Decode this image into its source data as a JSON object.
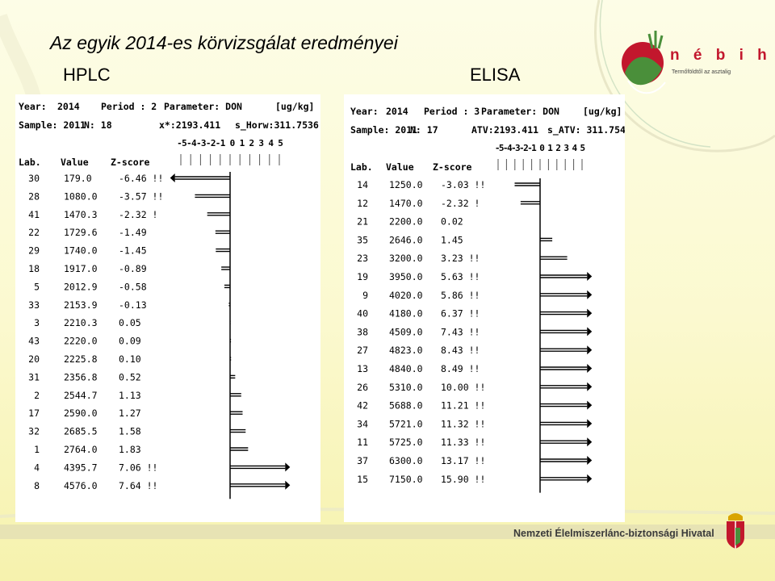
{
  "slide": {
    "title": "Az egyik 2014-es körvizsgálat eredményei",
    "left_heading": "HPLC",
    "right_heading": "ELISA",
    "footer": "Nemzeti Élelmiszerlánc-biztonsági Hivatal",
    "logo_word": "n é b i h",
    "logo_tagline": "Termőföldtől az asztalig",
    "colors": {
      "logo_red": "#c2172d",
      "logo_green": "#4a8f3a",
      "arrow": "#000000"
    }
  },
  "chart_data": [
    {
      "type": "bar",
      "header": {
        "year_label": "Year:",
        "year": "2014",
        "period_label": "Period : 2",
        "parameter_label": "Parameter: DON",
        "unit": "[ug/kg]",
        "sample_label": "Sample: 2011",
        "n_label": "N: 18",
        "assigned": "x*:2193.411",
        "sd": "s_Horw:311.7536"
      },
      "scale_labels": "-5-4-3-2-1 0 1 2 3 4 5",
      "columns": [
        "Lab.",
        "Value",
        "Z-score"
      ],
      "xlim": [
        -5,
        5
      ],
      "rows": [
        {
          "lab": "30",
          "value": "179.0",
          "z": "-6.46 !!",
          "zv": -6.46
        },
        {
          "lab": "28",
          "value": "1080.0",
          "z": "-3.57 !!",
          "zv": -3.57
        },
        {
          "lab": "41",
          "value": "1470.3",
          "z": "-2.32 !",
          "zv": -2.32
        },
        {
          "lab": "22",
          "value": "1729.6",
          "z": "-1.49",
          "zv": -1.49
        },
        {
          "lab": "29",
          "value": "1740.0",
          "z": "-1.45",
          "zv": -1.45
        },
        {
          "lab": "18",
          "value": "1917.0",
          "z": "-0.89",
          "zv": -0.89
        },
        {
          "lab": "5",
          "value": "2012.9",
          "z": "-0.58",
          "zv": -0.58
        },
        {
          "lab": "33",
          "value": "2153.9",
          "z": "-0.13",
          "zv": -0.13
        },
        {
          "lab": "3",
          "value": "2210.3",
          "z": "0.05",
          "zv": 0.05
        },
        {
          "lab": "43",
          "value": "2220.0",
          "z": "0.09",
          "zv": 0.09
        },
        {
          "lab": "20",
          "value": "2225.8",
          "z": "0.10",
          "zv": 0.1
        },
        {
          "lab": "31",
          "value": "2356.8",
          "z": "0.52",
          "zv": 0.52
        },
        {
          "lab": "2",
          "value": "2544.7",
          "z": "1.13",
          "zv": 1.13
        },
        {
          "lab": "17",
          "value": "2590.0",
          "z": "1.27",
          "zv": 1.27
        },
        {
          "lab": "32",
          "value": "2685.5",
          "z": "1.58",
          "zv": 1.58
        },
        {
          "lab": "1",
          "value": "2764.0",
          "z": "1.83",
          "zv": 1.83
        },
        {
          "lab": "4",
          "value": "4395.7",
          "z": "7.06 !!",
          "zv": 7.06
        },
        {
          "lab": "8",
          "value": "4576.0",
          "z": "7.64 !!",
          "zv": 7.64
        }
      ]
    },
    {
      "type": "bar",
      "header": {
        "year_label": "Year:",
        "year": "2014",
        "period_label": "Period : 3",
        "parameter_label": "Parameter: DON",
        "unit": "[ug/kg]",
        "sample_label": "Sample: 2011",
        "n_label": "N: 17",
        "assigned": "ATV:2193.411",
        "sd": "s_ATV: 311.754"
      },
      "scale_labels": "-5-4-3-2-1 0 1 2 3 4 5",
      "columns": [
        "Lab.",
        "Value",
        "Z-score"
      ],
      "xlim": [
        -5,
        5
      ],
      "rows": [
        {
          "lab": "14",
          "value": "1250.0",
          "z": "-3.03 !!",
          "zv": -3.03
        },
        {
          "lab": "12",
          "value": "1470.0",
          "z": "-2.32 !",
          "zv": -2.32
        },
        {
          "lab": "21",
          "value": "2200.0",
          "z": "0.02",
          "zv": 0.02
        },
        {
          "lab": "35",
          "value": "2646.0",
          "z": "1.45",
          "zv": 1.45
        },
        {
          "lab": "23",
          "value": "3200.0",
          "z": "3.23 !!",
          "zv": 3.23
        },
        {
          "lab": "19",
          "value": "3950.0",
          "z": "5.63 !!",
          "zv": 5.63
        },
        {
          "lab": "9",
          "value": "4020.0",
          "z": "5.86 !!",
          "zv": 5.86
        },
        {
          "lab": "40",
          "value": "4180.0",
          "z": "6.37 !!",
          "zv": 6.37
        },
        {
          "lab": "38",
          "value": "4509.0",
          "z": "7.43 !!",
          "zv": 7.43
        },
        {
          "lab": "27",
          "value": "4823.0",
          "z": "8.43 !!",
          "zv": 8.43
        },
        {
          "lab": "13",
          "value": "4840.0",
          "z": "8.49 !!",
          "zv": 8.49
        },
        {
          "lab": "26",
          "value": "5310.0",
          "z": "10.00 !!",
          "zv": 10.0
        },
        {
          "lab": "42",
          "value": "5688.0",
          "z": "11.21 !!",
          "zv": 11.21
        },
        {
          "lab": "34",
          "value": "5721.0",
          "z": "11.32 !!",
          "zv": 11.32
        },
        {
          "lab": "11",
          "value": "5725.0",
          "z": "11.33 !!",
          "zv": 11.33
        },
        {
          "lab": "37",
          "value": "6300.0",
          "z": "13.17 !!",
          "zv": 13.17
        },
        {
          "lab": "15",
          "value": "7150.0",
          "z": "15.90 !!",
          "zv": 15.9
        }
      ]
    }
  ]
}
